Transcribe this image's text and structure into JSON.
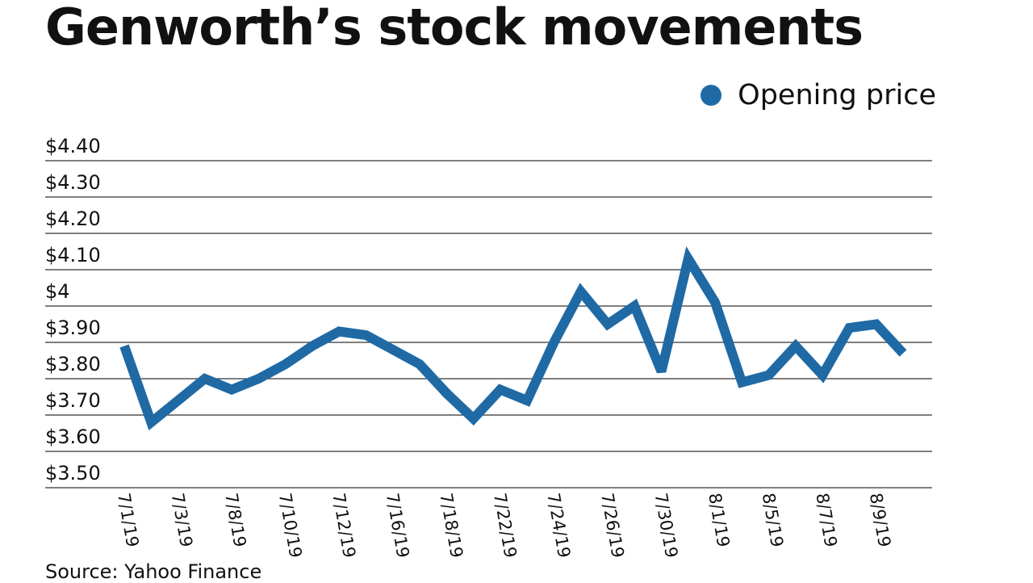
{
  "chart_data": {
    "type": "line",
    "title": "Genworth’s stock movements",
    "source": "Source: Yahoo Finance",
    "legend": {
      "position": "top-right"
    },
    "series_color": "#1f6aa5",
    "grid": true,
    "ylim": [
      3.5,
      4.4
    ],
    "y_ticks": [
      {
        "value": 3.5,
        "label": "$3.50"
      },
      {
        "value": 3.6,
        "label": "$3.60"
      },
      {
        "value": 3.7,
        "label": "$3.70"
      },
      {
        "value": 3.8,
        "label": "$3.80"
      },
      {
        "value": 3.9,
        "label": "$3.90"
      },
      {
        "value": 4.0,
        "label": "$4"
      },
      {
        "value": 4.1,
        "label": "$4.10"
      },
      {
        "value": 4.2,
        "label": "$4.20"
      },
      {
        "value": 4.3,
        "label": "$4.30"
      },
      {
        "value": 4.4,
        "label": "$4.40"
      }
    ],
    "x_tick_labels": [
      "7/1/19",
      "7/3/19",
      "7/8/19",
      "7/10/19",
      "7/12/19",
      "7/16/19",
      "7/18/19",
      "7/22/19",
      "7/24/19",
      "7/26/19",
      "7/30/19",
      "8/1/19",
      "8/5/19",
      "8/7/19",
      "8/9/19"
    ],
    "series": [
      {
        "name": "Opening price",
        "values": [
          3.89,
          3.68,
          3.74,
          3.8,
          3.77,
          3.8,
          3.84,
          3.89,
          3.93,
          3.92,
          3.88,
          3.84,
          3.76,
          3.69,
          3.77,
          3.74,
          3.9,
          4.04,
          3.95,
          4.0,
          3.82,
          4.13,
          4.01,
          3.79,
          3.81,
          3.89,
          3.81,
          3.94,
          3.95,
          3.87
        ]
      }
    ]
  }
}
